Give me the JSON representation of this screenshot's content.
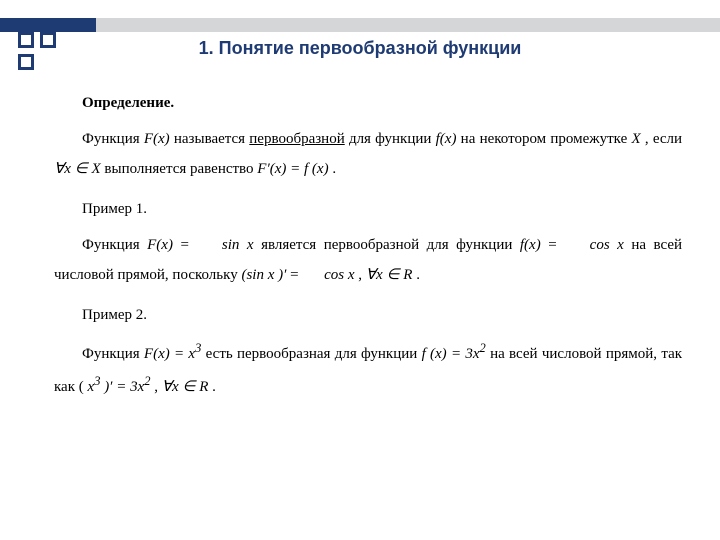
{
  "colors": {
    "accent_dark": "#1f3b73",
    "accent_grey": "#d4d6d8",
    "text": "#000000",
    "background": "#ffffff"
  },
  "typography": {
    "title_font": "Arial",
    "title_size_pt": 18,
    "title_weight": "bold",
    "body_font": "Times New Roman",
    "body_size_pt": 15,
    "line_height": 2.0
  },
  "title": "1. Понятие первообразной функции",
  "definition": {
    "heading": "Определение.",
    "pre": "Функция ",
    "Fx": "F(x)",
    "mid1": " называется ",
    "term": "первообразной",
    "mid2": " для функции ",
    "fx": "f(x)",
    "mid3": " на некотором промежутке ",
    "X": "X",
    "mid4": ", если ",
    "forall": "∀x ∈ X",
    "mid5": " выполняется равенство ",
    "eq": "F′(x) = f (x)",
    "tail": "."
  },
  "example1": {
    "heading": "Пример 1.",
    "pre": "Функция ",
    "Fx": "F(x)",
    "eq1": " = ",
    "sinx": "sin x",
    "mid1": " является первообразной для функции ",
    "fx": "f(x)",
    "eq2": " = ",
    "cosx": "cos x",
    "mid2": " на всей числовой прямой, поскольку ",
    "deriv": "(sin x )′",
    "eq3": " = ",
    "cosx2": "cos x",
    "comma": " , ",
    "forall": "∀x ∈ R",
    "tail": " ."
  },
  "example2": {
    "heading": "Пример 2.",
    "pre": "Функция ",
    "Fx": "F(x) = x",
    "cube": "3",
    "mid1": " есть первообразная для функции ",
    "fx": "f (x) = 3x",
    "sq": "2",
    "mid2": " на всей числовой прямой, так как (",
    "xcube": "x",
    "cube2": "3",
    "deriv": " )′ = 3x",
    "sq2": "2",
    "comma": " , ",
    "forall": "∀x ∈ R",
    "tail": " ."
  }
}
